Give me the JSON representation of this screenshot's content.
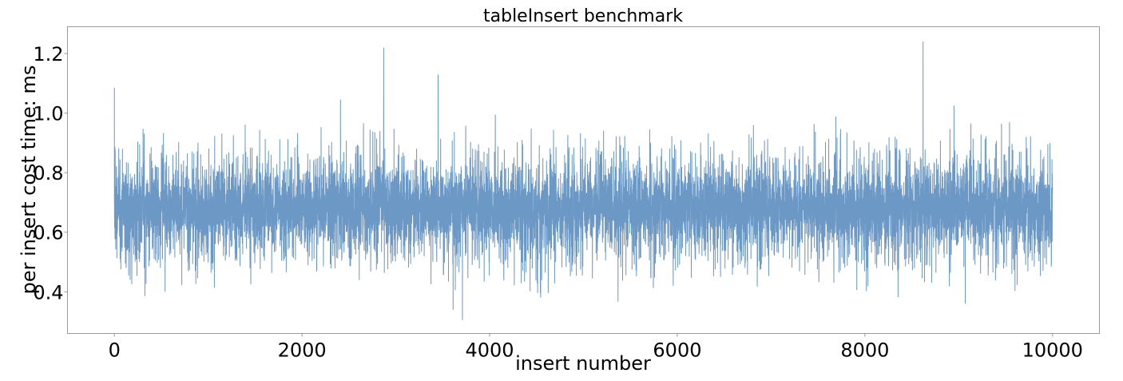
{
  "chart_data": {
    "type": "line",
    "title": "tableInsert benchmark",
    "xlabel": "insert number",
    "ylabel": "per insert cost time: ms",
    "xlim": [
      -500,
      10500
    ],
    "ylim": [
      0.26,
      1.29
    ],
    "xticks": [
      "0",
      "2000",
      "4000",
      "6000",
      "8000",
      "10000"
    ],
    "xtick_values": [
      0,
      2000,
      4000,
      6000,
      8000,
      10000
    ],
    "yticks": [
      "0.4",
      "0.6",
      "0.8",
      "1.0",
      "1.2"
    ],
    "ytick_values": [
      0.4,
      0.6,
      0.8,
      1.0,
      1.2
    ],
    "grid": false,
    "legend": "none",
    "series_color": "#3a76b0",
    "series": [
      {
        "n_points": 10000,
        "x_range": [
          0,
          10000
        ],
        "typical_mean": 0.68,
        "typical_band": [
          0.4,
          0.95
        ],
        "peaks": [
          {
            "x": 0,
            "y": 1.085
          },
          {
            "x": 2410,
            "y": 1.045
          },
          {
            "x": 2870,
            "y": 1.22
          },
          {
            "x": 3450,
            "y": 1.13
          },
          {
            "x": 4060,
            "y": 0.995
          },
          {
            "x": 8620,
            "y": 1.24
          },
          {
            "x": 8950,
            "y": 1.025
          }
        ],
        "troughs": [
          {
            "x": 3710,
            "y": 0.305
          },
          {
            "x": 3610,
            "y": 0.34
          },
          {
            "x": 9070,
            "y": 0.36
          }
        ]
      }
    ]
  }
}
